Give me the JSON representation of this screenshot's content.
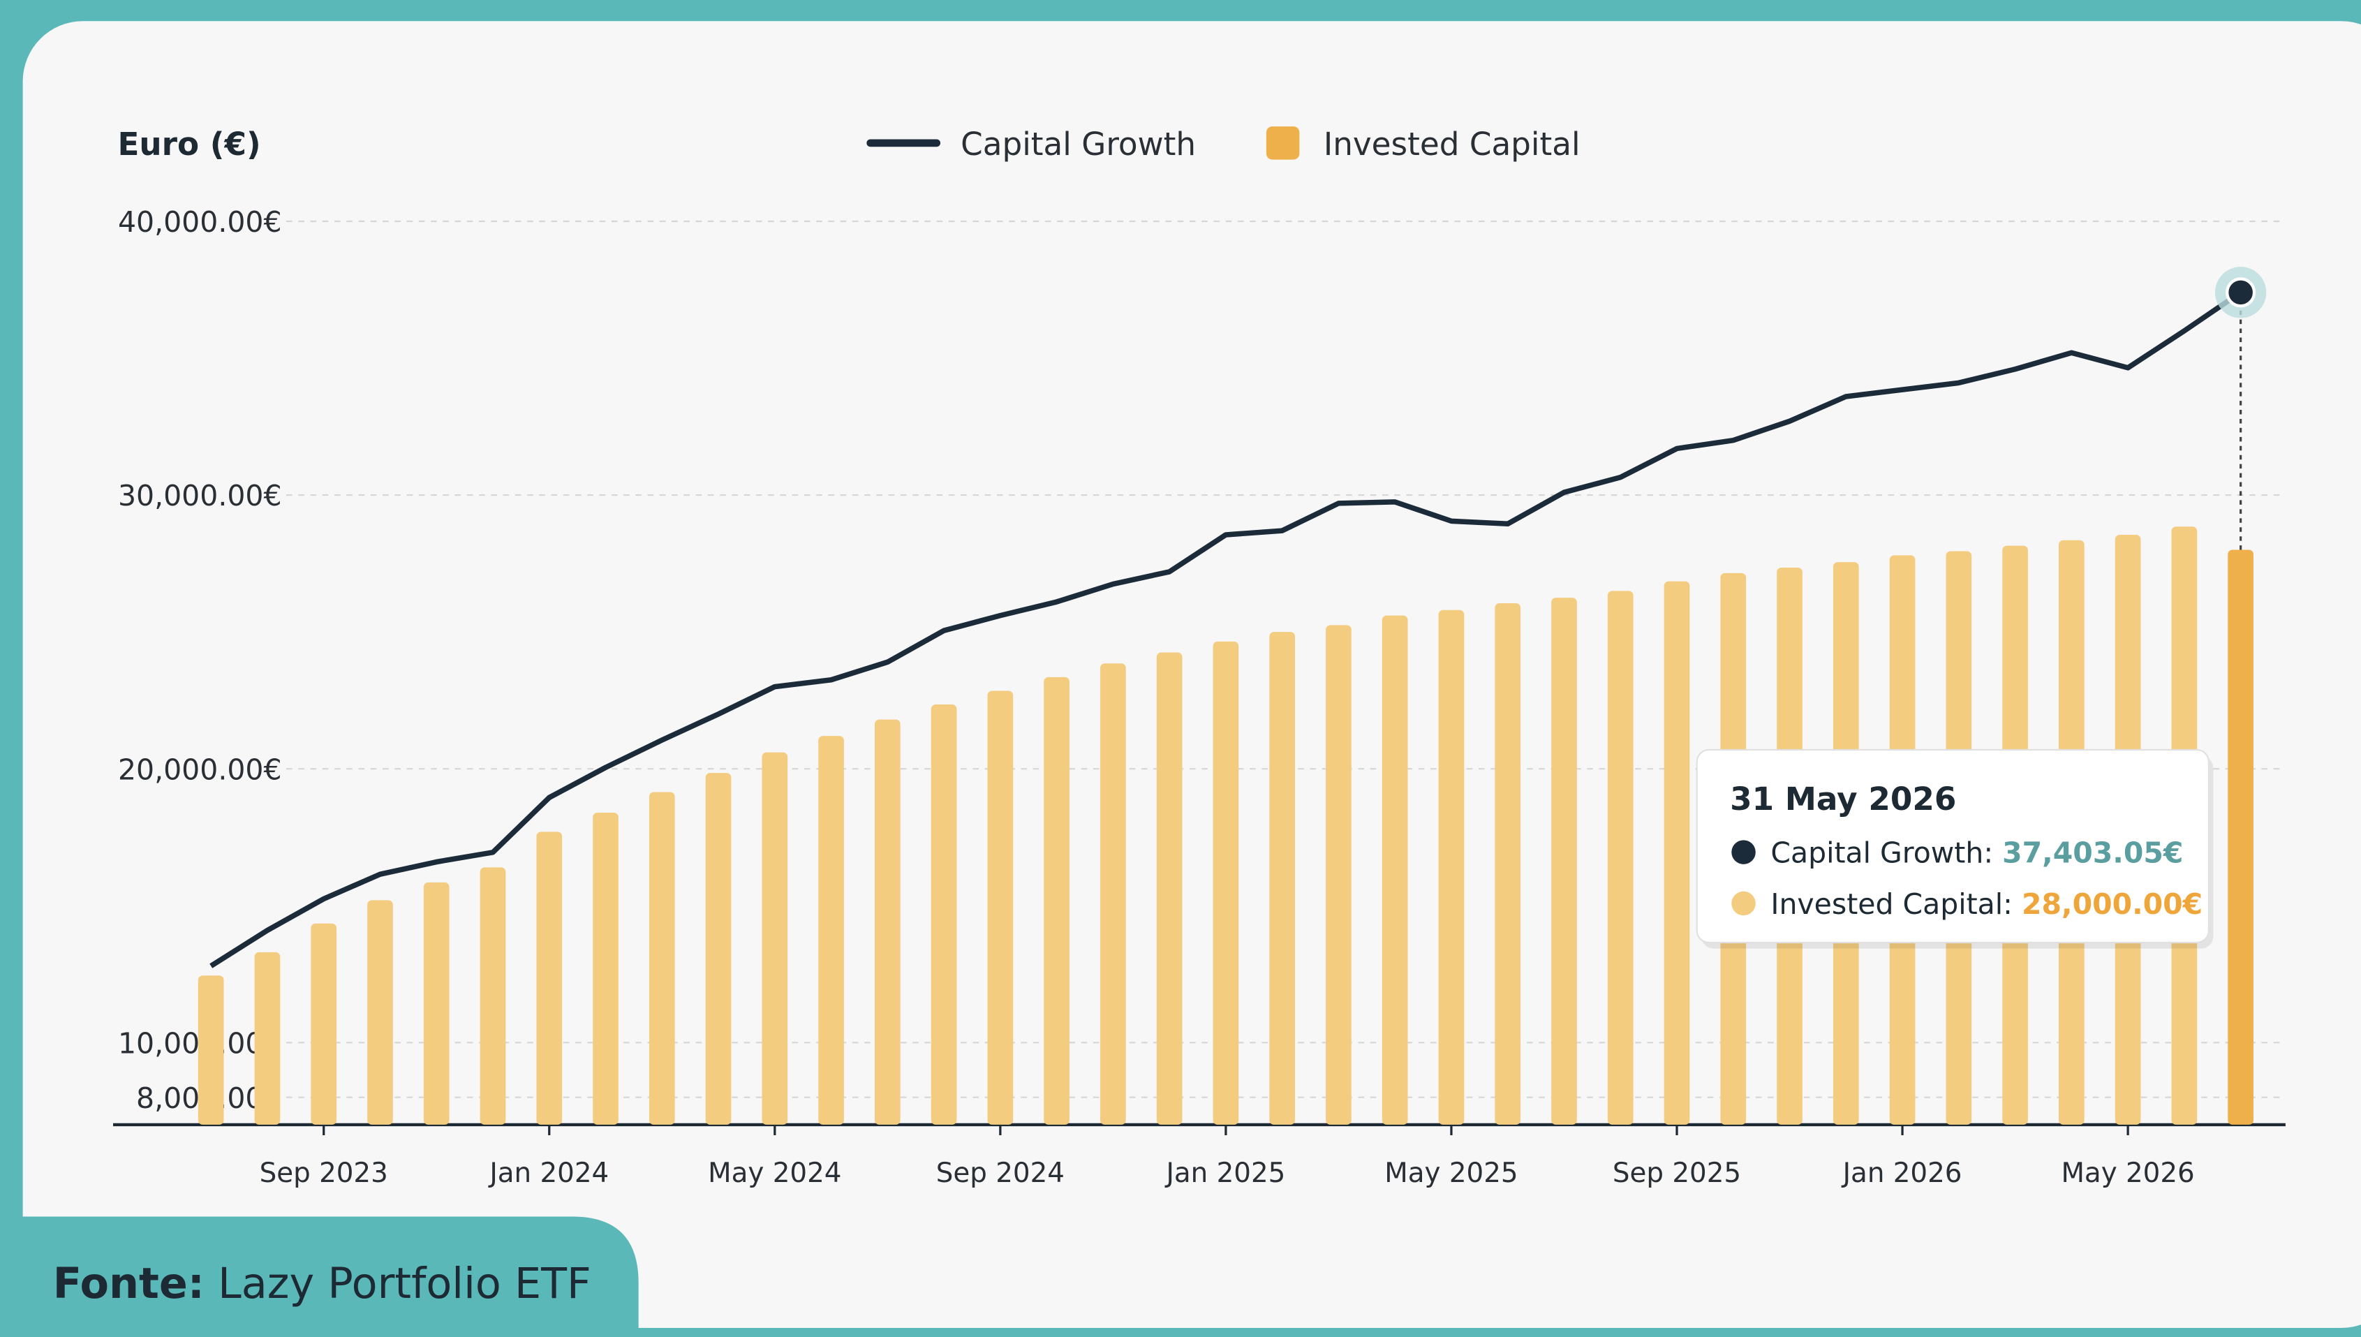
{
  "chart_data": {
    "type": "bar_line",
    "y_axis_label": "Euro (€)",
    "categories": [
      null,
      null,
      "Sep 2023",
      null,
      null,
      null,
      "Jan 2024",
      null,
      null,
      null,
      "May 2024",
      null,
      null,
      null,
      "Sep 2024",
      null,
      null,
      null,
      "Jan 2025",
      null,
      null,
      null,
      "May 2025",
      null,
      null,
      null,
      "Sep 2025",
      null,
      null,
      null,
      "Jan 2026",
      null,
      null,
      null,
      "May 2026",
      null,
      null
    ],
    "series": [
      {
        "name": "Capital Growth",
        "kind": "line",
        "color": "#1c2b3a",
        "values": [
          12800,
          14100,
          15250,
          16150,
          16600,
          16950,
          18950,
          20050,
          21050,
          22000,
          23000,
          23250,
          23900,
          25050,
          25600,
          26100,
          26750,
          27200,
          28550,
          28700,
          29700,
          29750,
          29050,
          28950,
          30100,
          30650,
          31700,
          32000,
          32700,
          33600,
          33850,
          34100,
          34600,
          35200,
          34650,
          36000,
          37403.05
        ],
        "value_labels": [
          null,
          null,
          null,
          null,
          null,
          null,
          null,
          null,
          null,
          null,
          null,
          null,
          null,
          null,
          null,
          null,
          null,
          null,
          null,
          null,
          null,
          null,
          null,
          null,
          null,
          null,
          null,
          null,
          null,
          null,
          null,
          null,
          null,
          null,
          null,
          null,
          "37,403.05€"
        ]
      },
      {
        "name": "Invested Capital",
        "kind": "bar",
        "color": "#f3cc80",
        "highlight_color": "#edb04a",
        "values": [
          12450,
          13300,
          14350,
          15200,
          15850,
          16400,
          17700,
          18400,
          19150,
          19850,
          20600,
          21200,
          21800,
          22350,
          22850,
          23350,
          23850,
          24250,
          24650,
          25000,
          25250,
          25600,
          25800,
          26050,
          26250,
          26500,
          26850,
          27150,
          27350,
          27550,
          27800,
          27950,
          28150,
          28350,
          28550,
          28850,
          28000
        ],
        "value_labels": [
          null,
          null,
          null,
          null,
          null,
          null,
          null,
          null,
          null,
          null,
          null,
          null,
          null,
          null,
          null,
          null,
          null,
          null,
          null,
          null,
          null,
          null,
          null,
          null,
          null,
          null,
          null,
          null,
          null,
          null,
          null,
          null,
          null,
          null,
          null,
          null,
          "28,000.00€"
        ]
      }
    ],
    "ylim": [
      7000,
      40000
    ],
    "yticks": [
      {
        "value": 8000,
        "label": "8,000.00€"
      },
      {
        "value": 10000,
        "label": "10,000.00€"
      },
      {
        "value": 20000,
        "label": "20,000.00€"
      },
      {
        "value": 30000,
        "label": "30,000.00€"
      },
      {
        "value": 40000,
        "label": "40,000.00€"
      }
    ],
    "grid": true,
    "legend": "top",
    "tooltip": {
      "date": "31 May 2026",
      "labels": [
        "Capital Growth:",
        "Invested Capital:"
      ],
      "index": 36
    }
  },
  "footer": {
    "label": "Fonte:",
    "text": "Lazy Portfolio ETF"
  }
}
